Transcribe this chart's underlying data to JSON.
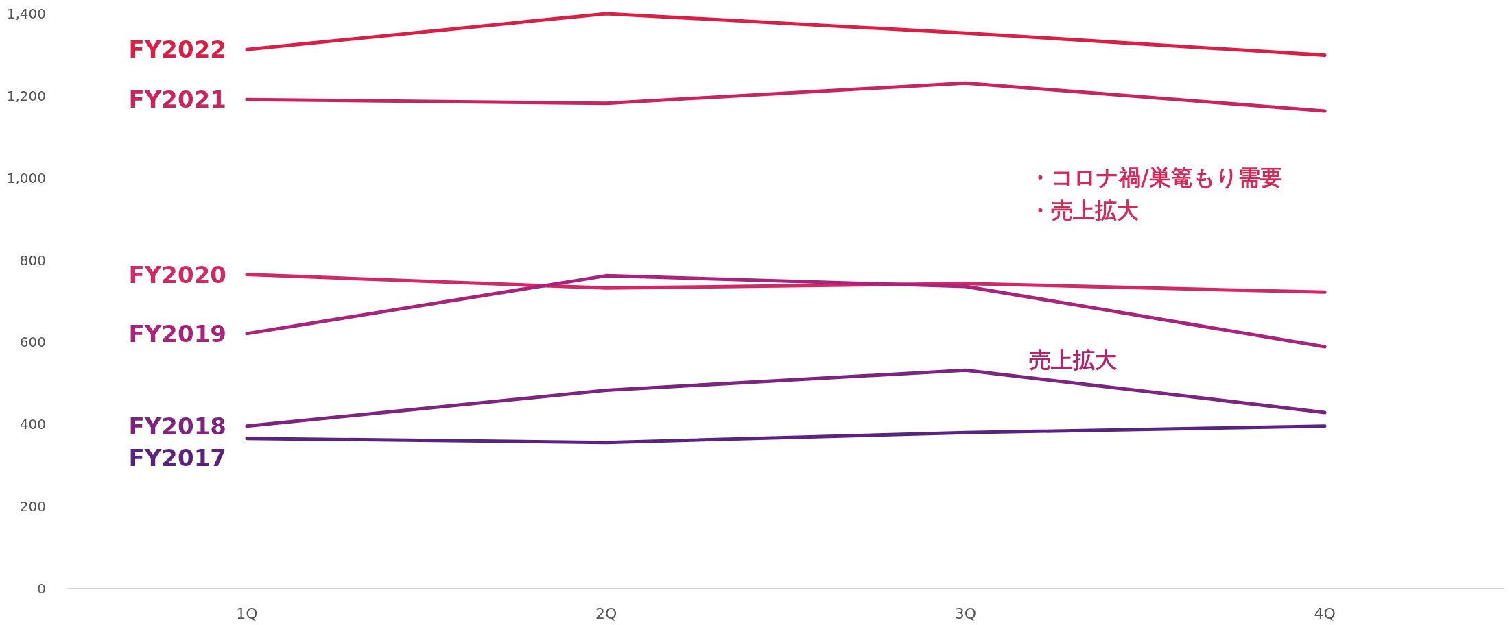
{
  "chart_data": {
    "type": "line",
    "categories": [
      "1Q",
      "2Q",
      "3Q",
      "4Q"
    ],
    "ylim": [
      0,
      1400
    ],
    "yticks": [
      0,
      200,
      400,
      600,
      800,
      {
        "value": 1000,
        "label": "1,000"
      },
      {
        "value": 1200,
        "label": "1,200"
      },
      {
        "value": 1400,
        "label": "1,400"
      }
    ],
    "grid": false,
    "legend": false,
    "marker": "none",
    "line_style": "solid",
    "series": [
      {
        "name": "FY2022",
        "color": "#d91f45",
        "values": [
          1313,
          1400,
          1353,
          1299
        ]
      },
      {
        "name": "FY2021",
        "color": "#c8245f",
        "values": [
          1191,
          1182,
          1231,
          1163
        ]
      },
      {
        "name": "FY2020",
        "color": "#cf2a66",
        "values": [
          765,
          732,
          743,
          722
        ]
      },
      {
        "name": "FY2019",
        "color": "#a8237a",
        "values": [
          621,
          762,
          736,
          589
        ]
      },
      {
        "name": "FY2018",
        "color": "#7d2380",
        "values": [
          396,
          483,
          532,
          429
        ]
      },
      {
        "name": "FY2017",
        "color": "#5a237f",
        "values": [
          366,
          356,
          380,
          396
        ]
      }
    ],
    "annotations": [
      "・コロナ禍/巣篭もり需要",
      "・売上拡大",
      "売上拡大"
    ]
  }
}
